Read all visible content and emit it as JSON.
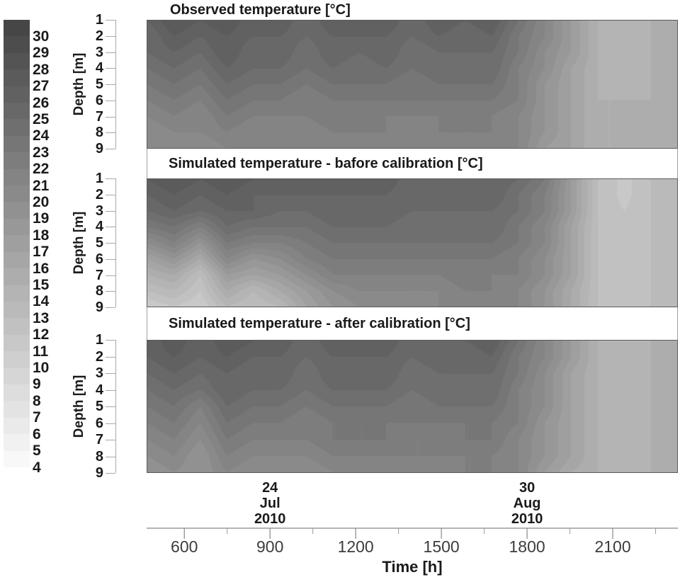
{
  "colorbar": {
    "labels": [
      30,
      29,
      28,
      27,
      26,
      25,
      24,
      23,
      22,
      21,
      20,
      19,
      18,
      17,
      16,
      15,
      14,
      13,
      12,
      11,
      10,
      9,
      8,
      7,
      6,
      5,
      4
    ],
    "min_value": 4,
    "max_value": 30,
    "dark_gray": "#464646",
    "light_gray": "#f8f8f8"
  },
  "depth_axis": {
    "label": "Depth [m]",
    "ticks": [
      1,
      2,
      3,
      4,
      5,
      6,
      7,
      8,
      9
    ]
  },
  "time_axis": {
    "label": "Time [h]",
    "domain": [
      468,
      2328
    ],
    "major_ticks": [
      600,
      900,
      1200,
      1500,
      1800,
      2100
    ],
    "minor_ticks": [
      750,
      1050,
      1350,
      1650,
      1950,
      2250
    ],
    "date_annotations": [
      {
        "time": 900,
        "lines": [
          "24",
          "Jul",
          "2010"
        ]
      },
      {
        "time": 1800,
        "lines": [
          "30",
          "Aug",
          "2010"
        ]
      }
    ]
  },
  "chart_data": [
    {
      "type": "heatmap",
      "title": "Observed temperature [°C]",
      "x_label": "Time [h]",
      "y_label": "Depth [m]",
      "color_scale": {
        "type": "discrete-grayscale",
        "band_step": 1,
        "min": 4,
        "max": 30
      },
      "x_times": [
        468,
        561,
        654,
        747,
        840,
        933,
        1026,
        1119,
        1212,
        1305,
        1398,
        1491,
        1584,
        1677,
        1770,
        1863,
        1956,
        2049,
        2142,
        2235,
        2328
      ],
      "depths": [
        1,
        2,
        3,
        4,
        5,
        6,
        7,
        8,
        9
      ],
      "temperature_c": [
        [
          26,
          28,
          27,
          28,
          26,
          27,
          25,
          27,
          26,
          27,
          25,
          27,
          26,
          27,
          24,
          21,
          18,
          15,
          14.6,
          15,
          16
        ],
        [
          25,
          27,
          26,
          27,
          26,
          26,
          25,
          26,
          26,
          26,
          25,
          26,
          25,
          26,
          23,
          21,
          18,
          15,
          14.6,
          15,
          16
        ],
        [
          25,
          26,
          25,
          27,
          25,
          26,
          24,
          26,
          25,
          26,
          24,
          25,
          25,
          25,
          23,
          20,
          18,
          15,
          14.6,
          15,
          16
        ],
        [
          24,
          25,
          24,
          26,
          25,
          25,
          24,
          25,
          24,
          25,
          24,
          25,
          24,
          25,
          22,
          20,
          17,
          15,
          14.6,
          15,
          16
        ],
        [
          23,
          24,
          23,
          25,
          24,
          24,
          23,
          24,
          24,
          24,
          23,
          24,
          24,
          24,
          22,
          19,
          17,
          15,
          14.6,
          15,
          16
        ],
        [
          22,
          23,
          22,
          24,
          23,
          23,
          22,
          23,
          23,
          23,
          23,
          23,
          23,
          23,
          22,
          19,
          17,
          15,
          15,
          15,
          16
        ],
        [
          21,
          22,
          21,
          23,
          22,
          22,
          22,
          23,
          22,
          22,
          22,
          22,
          23,
          22,
          21,
          19,
          17,
          15,
          15,
          15,
          16
        ],
        [
          20,
          21,
          21,
          22,
          21,
          22,
          21,
          22,
          22,
          22,
          21,
          22,
          22,
          22,
          21,
          19,
          17,
          15,
          15,
          15,
          16
        ],
        [
          20,
          21,
          20,
          21,
          21,
          21,
          21,
          21,
          21,
          21,
          21,
          21,
          21,
          21,
          21,
          18,
          17,
          15,
          15,
          15,
          16
        ]
      ]
    },
    {
      "type": "heatmap",
      "title": "Simulated temperature - bafore calibration [°C]",
      "x_label": "Time [h]",
      "y_label": "Depth [m]",
      "color_scale": {
        "type": "discrete-grayscale",
        "band_step": 1,
        "min": 4,
        "max": 30
      },
      "x_times": [
        468,
        561,
        654,
        747,
        840,
        933,
        1026,
        1119,
        1212,
        1305,
        1398,
        1491,
        1584,
        1677,
        1770,
        1863,
        1956,
        2049,
        2142,
        2235,
        2328
      ],
      "depths": [
        1,
        2,
        3,
        4,
        5,
        6,
        7,
        8,
        9
      ],
      "temperature_c": [
        [
          27,
          28,
          27,
          28,
          27,
          27,
          26,
          27,
          26,
          27,
          25,
          26,
          26,
          26,
          25,
          23,
          18,
          13,
          11.6,
          13,
          14
        ],
        [
          26,
          27,
          26,
          27,
          26,
          26,
          26,
          26,
          26,
          26,
          25,
          26,
          25,
          26,
          24,
          22,
          18,
          13,
          11.6,
          13,
          14
        ],
        [
          25,
          26,
          25,
          26,
          26,
          25,
          25,
          26,
          25,
          26,
          25,
          25,
          25,
          25,
          24,
          22,
          18,
          13,
          12,
          13,
          14
        ],
        [
          23,
          24,
          22,
          25,
          24,
          24,
          24,
          25,
          25,
          25,
          24,
          25,
          24,
          25,
          23,
          21,
          17,
          13,
          12,
          13,
          14
        ],
        [
          20,
          22,
          19,
          23,
          22,
          22,
          23,
          24,
          24,
          24,
          24,
          24,
          24,
          24,
          23,
          21,
          17,
          13,
          12,
          13,
          14
        ],
        [
          17,
          19,
          16,
          21,
          19,
          20,
          22,
          23,
          23,
          23,
          23,
          23,
          23,
          23,
          22,
          20,
          17,
          13,
          12,
          13,
          14
        ],
        [
          15,
          16,
          13,
          18,
          17,
          18,
          20,
          22,
          22,
          22,
          22,
          22,
          23,
          22,
          22,
          20,
          17,
          13,
          12.5,
          13,
          14
        ],
        [
          13,
          14,
          12,
          16,
          14,
          16,
          18,
          20,
          21,
          21,
          21,
          21,
          22,
          22,
          21,
          19,
          16,
          13,
          12.5,
          13,
          14
        ],
        [
          11,
          12,
          11,
          14,
          13,
          14,
          17,
          19,
          20,
          20,
          20,
          21,
          21,
          21,
          21,
          19,
          16,
          13,
          12.5,
          13,
          14
        ]
      ]
    },
    {
      "type": "heatmap",
      "title": "Simulated temperature - after calibration [°C]",
      "x_label": "Time [h]",
      "y_label": "Depth [m]",
      "color_scale": {
        "type": "discrete-grayscale",
        "band_step": 1,
        "min": 4,
        "max": 30
      },
      "x_times": [
        468,
        561,
        654,
        747,
        840,
        933,
        1026,
        1119,
        1212,
        1305,
        1398,
        1491,
        1584,
        1677,
        1770,
        1863,
        1956,
        2049,
        2142,
        2235,
        2328
      ],
      "depths": [
        1,
        2,
        3,
        4,
        5,
        6,
        7,
        8,
        9
      ],
      "temperature_c": [
        [
          26,
          28,
          26,
          28,
          27,
          27,
          25,
          27,
          26,
          27,
          25,
          26,
          26,
          27,
          24,
          21,
          18,
          15,
          14.3,
          15,
          16
        ],
        [
          26,
          27,
          26,
          27,
          26,
          26,
          25,
          26,
          26,
          26,
          25,
          26,
          25,
          26,
          23,
          21,
          18,
          15,
          14.3,
          15,
          16
        ],
        [
          25,
          26,
          25,
          26,
          25,
          26,
          24,
          26,
          25,
          26,
          24,
          25,
          25,
          25,
          23,
          20,
          17,
          15,
          14.3,
          15,
          16
        ],
        [
          24,
          25,
          24,
          26,
          25,
          25,
          24,
          25,
          25,
          25,
          24,
          25,
          24,
          25,
          22,
          20,
          17,
          15,
          14.3,
          15,
          16
        ],
        [
          23,
          24,
          22,
          25,
          24,
          24,
          23,
          24,
          24,
          24,
          23,
          24,
          24,
          24,
          22,
          20,
          17,
          15,
          14.3,
          15,
          16
        ],
        [
          22,
          23,
          21,
          24,
          23,
          23,
          22,
          23,
          23,
          23,
          23,
          23,
          23,
          23,
          22,
          19,
          17,
          15,
          14.5,
          15,
          16
        ],
        [
          21,
          22,
          20,
          23,
          22,
          22,
          22,
          23,
          23,
          23,
          22,
          22,
          23,
          23,
          21,
          19,
          17,
          15,
          14.5,
          15,
          16
        ],
        [
          20,
          21,
          19,
          22,
          21,
          21,
          21,
          22,
          22,
          22,
          22,
          22,
          22,
          22,
          21,
          19,
          17,
          15,
          14.5,
          15,
          16
        ],
        [
          19,
          20,
          19,
          21,
          20,
          20,
          20,
          21,
          21,
          21,
          21,
          21,
          22,
          22,
          21,
          18,
          16,
          15,
          14.5,
          15,
          16
        ]
      ]
    }
  ]
}
